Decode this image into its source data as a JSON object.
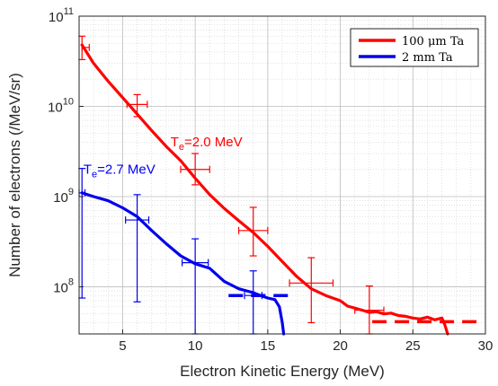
{
  "chart_data": {
    "type": "line",
    "xlabel": "Electron Kinetic Energy (MeV)",
    "ylabel": "Number of electrons (/MeV/sr)",
    "xlim": [
      2,
      30
    ],
    "ylim": [
      30000000,
      100000000000
    ],
    "yscale": "log",
    "x_ticks": [
      5,
      10,
      15,
      20,
      25,
      30
    ],
    "x_tick_labels": [
      "5",
      "10",
      "15",
      "20",
      "25",
      "30"
    ],
    "y_ticks": [
      100000000,
      1000000000,
      10000000000,
      100000000000
    ],
    "y_tick_labels": [
      {
        "base": "10",
        "exp": "8"
      },
      {
        "base": "10",
        "exp": "9"
      },
      {
        "base": "10",
        "exp": "10"
      },
      {
        "base": "10",
        "exp": "11"
      }
    ],
    "grid": true,
    "legend_position": "top-right",
    "series": [
      {
        "name": "100 μm Ta",
        "color": "#ff0000",
        "x": [
          2.2,
          3,
          4,
          5,
          6,
          7,
          8,
          9,
          10,
          11,
          12,
          13,
          14,
          15,
          16,
          17,
          18,
          19,
          20,
          20.5,
          21,
          21.5,
          22,
          22.5,
          23,
          23.5,
          24,
          24.5,
          25,
          25.5,
          26,
          26.5,
          27,
          27.2,
          27.4
        ],
        "y": [
          48000000000,
          30000000000,
          19000000000,
          12500000000,
          8200000000,
          5400000000,
          3600000000,
          2500000000,
          1600000000,
          1050000000,
          740000000,
          540000000,
          400000000,
          280000000,
          190000000,
          130000000,
          95000000,
          80000000,
          70000000,
          61000000,
          58000000,
          55000000,
          52000000,
          53000000,
          50000000,
          51000000,
          48000000,
          47000000,
          45000000,
          44000000,
          46000000,
          43000000,
          45000000,
          38000000,
          30000000
        ]
      },
      {
        "name": "2 mm Ta",
        "color": "#0000ee",
        "x": [
          2.2,
          3,
          4,
          5,
          6,
          7,
          8,
          9,
          10,
          11,
          12,
          13,
          14,
          14.5,
          15,
          15.5,
          15.8,
          16,
          16.1
        ],
        "y": [
          1100000000,
          1000000000,
          900000000,
          750000000,
          600000000,
          420000000,
          300000000,
          220000000,
          180000000,
          160000000,
          115000000,
          95000000,
          86000000,
          80000000,
          75000000,
          72000000,
          60000000,
          40000000,
          30000000
        ]
      }
    ],
    "dashed_levels": [
      {
        "series": "2 mm Ta",
        "color": "#0000ee",
        "x": [
          12.3,
          16.8
        ],
        "y": 80000000
      },
      {
        "series": "100 μm Ta",
        "color": "#ff0000",
        "x": [
          22.2,
          29.8
        ],
        "y": 41000000
      }
    ],
    "error_bars": [
      {
        "series": "100 μm Ta",
        "color": "#ff0000",
        "x": 2.2,
        "y": 45000000000,
        "y_low": 33000000000,
        "y_high": 60000000000,
        "x_low": 2.2,
        "x_high": 2.7
      },
      {
        "series": "100 μm Ta",
        "color": "#ff0000",
        "x": 6,
        "y": 10500000000,
        "y_low": 7700000000,
        "y_high": 13500000000,
        "x_low": 5.3,
        "x_high": 6.7
      },
      {
        "series": "100 μm Ta",
        "color": "#ff0000",
        "x": 10,
        "y": 2000000000,
        "y_low": 1350000000,
        "y_high": 3000000000,
        "x_low": 9,
        "x_high": 11
      },
      {
        "series": "100 μm Ta",
        "color": "#ff0000",
        "x": 14,
        "y": 420000000,
        "y_low": 220000000,
        "y_high": 760000000,
        "x_low": 13,
        "x_high": 15
      },
      {
        "series": "100 μm Ta",
        "color": "#ff0000",
        "x": 18,
        "y": 110000000,
        "y_low": 40000000,
        "y_high": 210000000,
        "x_low": 16.5,
        "x_high": 19.5
      },
      {
        "series": "100 μm Ta",
        "color": "#ff0000",
        "x": 22,
        "y": 55000000,
        "y_low": 30000000,
        "y_high": 102000000,
        "x_low": 21,
        "x_high": 23
      },
      {
        "series": "2 mm Ta",
        "color": "#0000ee",
        "x": 2.2,
        "y": 1100000000,
        "y_low": 75000000,
        "y_high": 2050000000,
        "x_low": 2,
        "x_high": 2.4
      },
      {
        "series": "2 mm Ta",
        "color": "#0000ee",
        "x": 6,
        "y": 550000000,
        "y_low": 68000000,
        "y_high": 1050000000,
        "x_low": 5.2,
        "x_high": 6.8
      },
      {
        "series": "2 mm Ta",
        "color": "#0000ee",
        "x": 10,
        "y": 185000000,
        "y_low": 30000000,
        "y_high": 340000000,
        "x_low": 9.1,
        "x_high": 10.9
      },
      {
        "series": "2 mm Ta",
        "color": "#0000ee",
        "x": 14,
        "y": 80000000,
        "y_low": 30000000,
        "y_high": 150000000,
        "x_low": 13.4,
        "x_high": 14.6
      }
    ],
    "annotations": [
      {
        "base": "T",
        "sub": "e",
        "text": "=2.0 MeV",
        "color": "#ff0000",
        "x": 8.3,
        "y": 3600000000
      },
      {
        "base": "T",
        "sub": "e",
        "text": "=2.7 MeV",
        "color": "#0000ee",
        "x": 2.3,
        "y": 1800000000
      }
    ]
  }
}
